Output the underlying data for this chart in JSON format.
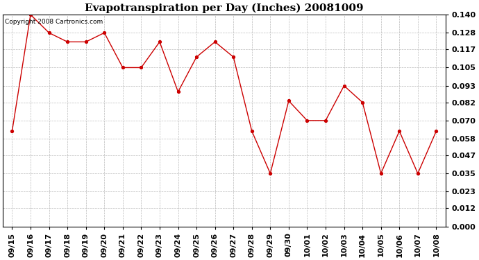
{
  "title": "Evapotranspiration per Day (Inches) 20081009",
  "copyright_text": "Copyright 2008 Cartronics.com",
  "x_labels": [
    "09/15",
    "09/16",
    "09/17",
    "09/18",
    "09/19",
    "09/20",
    "09/21",
    "09/22",
    "09/23",
    "09/24",
    "09/25",
    "09/26",
    "09/27",
    "09/28",
    "09/29",
    "09/30",
    "10/01",
    "10/02",
    "10/03",
    "10/04",
    "10/05",
    "10/06",
    "10/07",
    "10/08"
  ],
  "y_values": [
    0.063,
    0.14,
    0.128,
    0.122,
    0.122,
    0.128,
    0.105,
    0.105,
    0.122,
    0.089,
    0.112,
    0.122,
    0.112,
    0.063,
    0.035,
    0.083,
    0.07,
    0.07,
    0.093,
    0.082,
    0.035,
    0.063,
    0.035,
    0.063
  ],
  "line_color": "#cc0000",
  "marker": "o",
  "marker_size": 3,
  "marker_color": "#cc0000",
  "background_color": "#ffffff",
  "grid_color": "#bbbbbb",
  "ylim": [
    0.0,
    0.14
  ],
  "yticks": [
    0.0,
    0.012,
    0.023,
    0.035,
    0.047,
    0.058,
    0.07,
    0.082,
    0.093,
    0.105,
    0.117,
    0.128,
    0.14
  ],
  "title_fontsize": 11,
  "tick_fontsize": 8,
  "copyright_fontsize": 6.5
}
